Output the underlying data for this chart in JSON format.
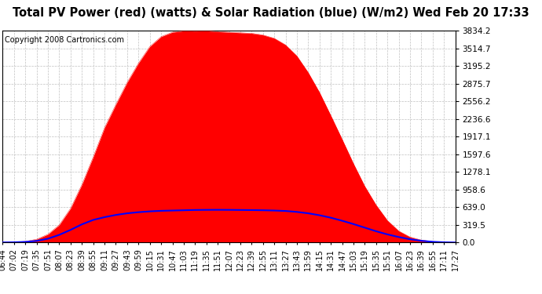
{
  "title": "Total PV Power (red) (watts) & Solar Radiation (blue) (W/m2) Wed Feb 20 17:33",
  "copyright": "Copyright 2008 Cartronics.com",
  "bg_color": "#ffffff",
  "plot_bg_color": "#ffffff",
  "yticks": [
    0.0,
    319.5,
    639.0,
    958.6,
    1278.1,
    1597.6,
    1917.1,
    2236.6,
    2556.2,
    2875.7,
    3195.2,
    3514.7,
    3834.2
  ],
  "ymax": 3834.2,
  "ymin": 0.0,
  "x_labels": [
    "06:44",
    "07:02",
    "07:19",
    "07:35",
    "07:51",
    "08:07",
    "08:23",
    "08:39",
    "08:55",
    "09:11",
    "09:27",
    "09:43",
    "09:59",
    "10:15",
    "10:31",
    "10:47",
    "11:03",
    "11:19",
    "11:35",
    "11:51",
    "12:07",
    "12:23",
    "12:39",
    "12:55",
    "13:11",
    "13:27",
    "13:43",
    "13:59",
    "14:15",
    "14:31",
    "14:47",
    "15:03",
    "15:19",
    "15:35",
    "15:51",
    "16:07",
    "16:23",
    "16:39",
    "16:55",
    "17:11",
    "17:27"
  ],
  "pv_power": [
    5,
    10,
    20,
    60,
    150,
    320,
    620,
    1050,
    1550,
    2080,
    2500,
    2900,
    3250,
    3550,
    3730,
    3810,
    3834,
    3830,
    3834,
    3820,
    3810,
    3800,
    3790,
    3760,
    3700,
    3580,
    3380,
    3080,
    2720,
    2300,
    1870,
    1430,
    1020,
    680,
    400,
    210,
    100,
    45,
    18,
    7,
    3
  ],
  "solar_rad": [
    2,
    5,
    12,
    30,
    70,
    140,
    230,
    330,
    410,
    460,
    500,
    530,
    550,
    565,
    575,
    580,
    585,
    590,
    592,
    593,
    592,
    590,
    588,
    585,
    580,
    572,
    555,
    530,
    495,
    450,
    395,
    335,
    270,
    205,
    148,
    100,
    60,
    32,
    14,
    5,
    1
  ],
  "pv_color": "#ff0000",
  "solar_color": "#0000ff",
  "grid_color": "#c0c0c0",
  "title_fontsize": 10.5,
  "copyright_fontsize": 7,
  "tick_fontsize": 7,
  "ytick_fontsize": 7.5
}
